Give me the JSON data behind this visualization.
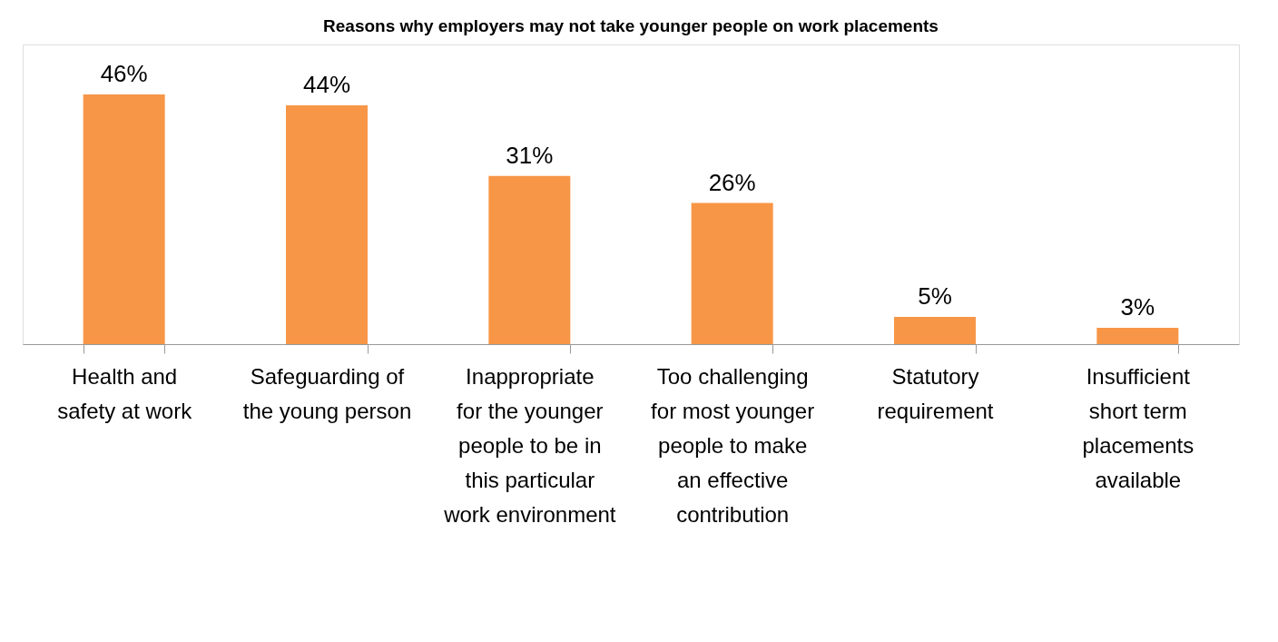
{
  "chart_data": {
    "type": "bar",
    "title": "Reasons why employers may not take younger people on work placements",
    "categories": [
      "Health and safety at work",
      "Safeguarding of the young person",
      "Inappropriate for the younger people to be in this particular work environment",
      "Too challenging for most younger people to make an effective contribution",
      "Statutory requirement",
      "Insufficient short term placements available"
    ],
    "values": [
      46,
      44,
      31,
      26,
      5,
      3
    ],
    "value_labels": [
      "46%",
      "44%",
      "31%",
      "26%",
      "5%",
      "3%"
    ],
    "color": "#f79646"
  }
}
